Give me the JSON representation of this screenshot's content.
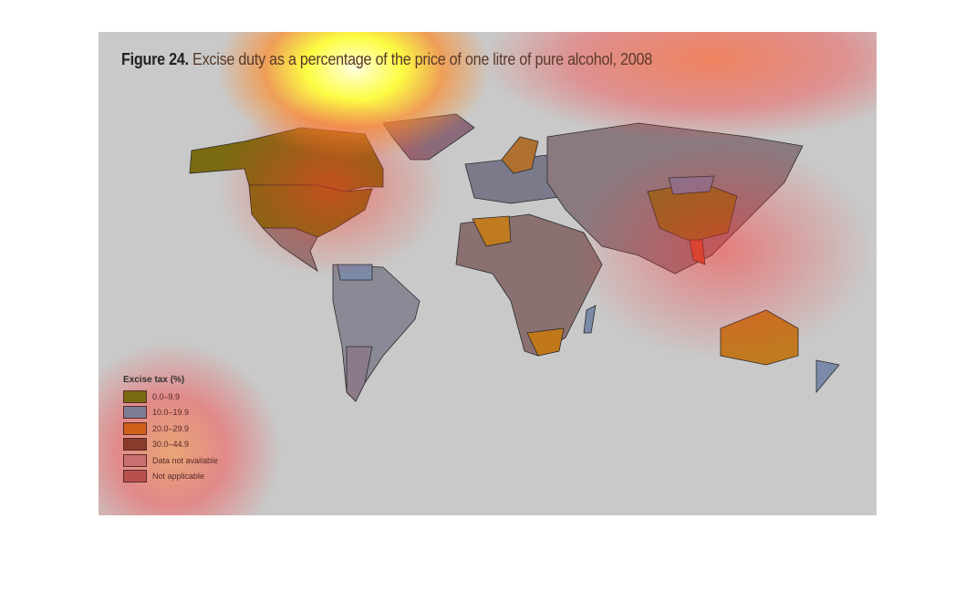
{
  "figure": {
    "label": "Figure 24.",
    "title": "Excise duty as a percentage of the price of one litre of pure alcohol, 2008"
  },
  "legend": {
    "title": "Excise tax (%)",
    "items": [
      {
        "label": "0.0–9.9",
        "color": "#7a6a12"
      },
      {
        "label": "10.0–19.9",
        "color": "#7d7d96"
      },
      {
        "label": "20.0–29.9",
        "color": "#d0601a"
      },
      {
        "label": "30.0–44.9",
        "color": "#8a3a2a"
      },
      {
        "label": "Data not available",
        "color": "#c87070"
      },
      {
        "label": "Not applicable",
        "color": "#b85050"
      }
    ]
  },
  "overlay": {
    "type": "attention-heatmap",
    "colors": [
      "#ffff66",
      "#ff3030"
    ]
  }
}
